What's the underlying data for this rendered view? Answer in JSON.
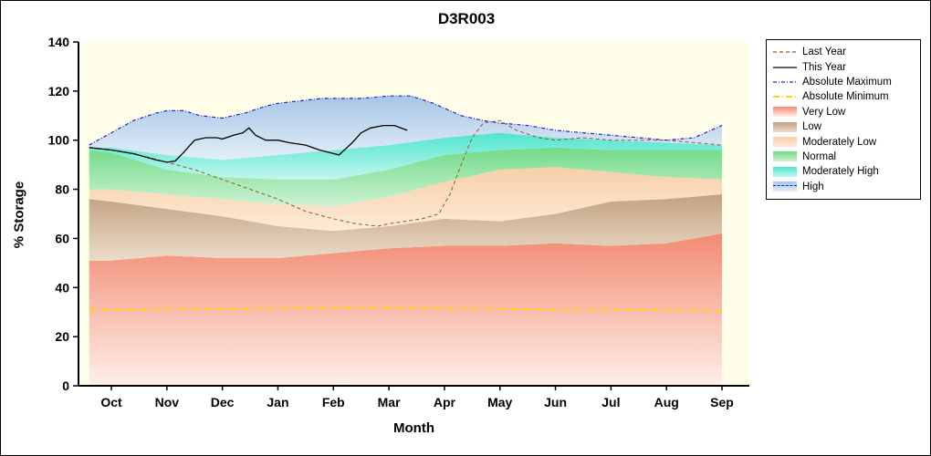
{
  "chart_data": {
    "type": "area",
    "title": "D3R003",
    "xlabel": "Month",
    "ylabel": "% Storage",
    "categories": [
      "Oct",
      "Nov",
      "Dec",
      "Jan",
      "Feb",
      "Mar",
      "Apr",
      "May",
      "Jun",
      "Jul",
      "Aug",
      "Sep"
    ],
    "ylim": [
      0,
      140
    ],
    "ytick_step": 20,
    "plot_bg": "#FFFFE9",
    "band_x": [
      -0.4,
      0,
      1,
      2,
      3,
      4,
      5,
      6,
      7,
      8,
      9,
      10,
      11
    ],
    "bands": [
      {
        "name": "very_low",
        "label": "Very Low",
        "color_top": "#F28A72",
        "color_bottom": "#FFEFEA",
        "top": [
          51,
          51,
          53,
          52,
          52,
          54,
          56,
          57,
          57,
          58,
          57,
          58,
          62
        ]
      },
      {
        "name": "low",
        "label": "Low",
        "color_top": "#C2A181",
        "color_bottom": "#EBDCC8",
        "top": [
          76,
          75,
          72,
          69,
          65,
          63,
          65,
          68,
          67,
          70,
          75,
          76,
          78
        ]
      },
      {
        "name": "moderately_low",
        "label": "Moderately Low",
        "color_top": "#F8CFA8",
        "color_bottom": "#FCEBD9",
        "top": [
          80,
          80,
          78,
          76,
          74,
          73,
          77,
          83,
          88,
          89,
          87,
          85,
          84
        ]
      },
      {
        "name": "normal",
        "label": "Normal",
        "color_top": "#72DB88",
        "color_bottom": "#CDF2D4",
        "top": [
          96,
          95,
          88,
          85,
          84,
          84,
          88,
          94,
          96,
          97,
          96,
          96,
          96
        ]
      },
      {
        "name": "moderately_high",
        "label": "Moderately High",
        "color_top": "#4FE5CE",
        "color_bottom": "#C2F6ED",
        "top": [
          97,
          97,
          94,
          92,
          94,
          96,
          98,
          101,
          103,
          101,
          100,
          99,
          98
        ]
      },
      {
        "name": "high",
        "label": "High",
        "color_top": "#A6C6E6",
        "color_bottom": "#E4EEF8",
        "top_ref": "absolute_maximum",
        "legend_line": "#2222CC"
      }
    ],
    "lines": [
      {
        "name": "last_year",
        "label": "Last Year",
        "color": "#A0522D",
        "dash": "4 3",
        "width": 1,
        "z": 0,
        "x": [
          -0.4,
          0,
          0.5,
          1,
          1.5,
          2,
          2.5,
          3,
          3.5,
          4,
          4.4,
          4.8,
          5,
          5.3,
          5.6,
          5.9,
          6.1,
          6.3,
          6.5,
          6.7,
          7,
          7.3,
          7.7,
          8,
          8.5,
          9,
          9.5,
          10,
          10.5,
          11
        ],
        "y": [
          97,
          96,
          94,
          91,
          88,
          84,
          80,
          76,
          71,
          68,
          66,
          65,
          66,
          67,
          68,
          70,
          78,
          90,
          101,
          107,
          108,
          104,
          101,
          100,
          101,
          100,
          100,
          100,
          99,
          98
        ]
      },
      {
        "name": "absolute_maximum",
        "label": "Absolute Maximum",
        "color": "#2222CC",
        "dash": "4 2 1 2",
        "width": 1.2,
        "z": 0,
        "x": [
          -0.4,
          0,
          0.4,
          0.8,
          1,
          1.3,
          1.6,
          2,
          2.4,
          2.8,
          3,
          3.4,
          3.8,
          4,
          4.5,
          5,
          5.4,
          5.8,
          6,
          6.3,
          6.7,
          7,
          7.5,
          8,
          8.5,
          9,
          9.5,
          10,
          10.5,
          11
        ],
        "y": [
          98,
          103,
          108,
          111,
          112,
          112,
          110,
          109,
          111,
          114,
          115,
          116,
          117,
          117,
          117,
          118,
          118,
          115,
          113,
          110,
          108,
          107,
          106,
          104,
          103,
          102,
          101,
          100,
          101,
          106
        ]
      },
      {
        "name": "absolute_minimum",
        "label": "Absolute Minimum",
        "color": "#FFD700",
        "dash": "7 3 1 3",
        "width": 2,
        "z": 0,
        "x": [
          -0.4,
          1,
          3,
          4.5,
          6,
          8,
          10,
          11
        ],
        "y": [
          31,
          31,
          31.5,
          32,
          31.5,
          31,
          31,
          30.5
        ]
      },
      {
        "name": "this_year",
        "label": "This Year",
        "color": "#000000",
        "dash": "",
        "width": 1.3,
        "z": 1,
        "x": [
          -0.4,
          0,
          0.4,
          0.8,
          1,
          1.15,
          1.3,
          1.5,
          1.7,
          1.9,
          2,
          2.2,
          2.37,
          2.48,
          2.6,
          2.78,
          3,
          3.2,
          3.5,
          3.75,
          3.93,
          4.1,
          4.34,
          4.5,
          4.67,
          4.9,
          5.1,
          5.33
        ],
        "y": [
          97,
          96,
          94.5,
          92,
          91,
          91.5,
          95,
          100,
          101,
          101,
          100.5,
          102,
          103,
          105,
          102,
          100,
          100,
          99,
          98,
          96,
          95,
          94,
          99,
          103,
          105,
          106,
          106,
          104
        ]
      }
    ],
    "legend_order": [
      "last_year",
      "this_year",
      "absolute_maximum",
      "absolute_minimum",
      "very_low",
      "low",
      "moderately_low",
      "normal",
      "moderately_high",
      "high"
    ]
  }
}
